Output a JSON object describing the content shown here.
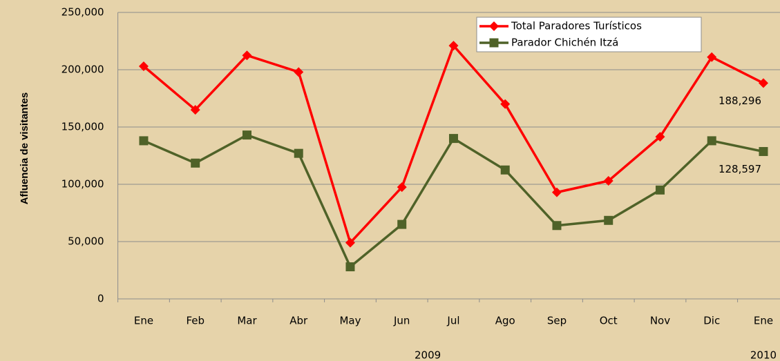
{
  "chart_data": {
    "type": "line",
    "y_axis_label": "Afluencia de visitantes",
    "categories": [
      "Ene",
      "Feb",
      "Mar",
      "Abr",
      "May",
      "Jun",
      "Jul",
      "Ago",
      "Sep",
      "Oct",
      "Nov",
      "Dic",
      "Ene"
    ],
    "years": [
      "2009",
      "2010"
    ],
    "series": [
      {
        "name": "Total Paradores Turísticos",
        "color": "#ff0000",
        "marker": "diamond",
        "values": [
          203000,
          165000,
          212500,
          198000,
          49000,
          97500,
          221000,
          170000,
          93000,
          103000,
          141500,
          211000,
          188296
        ],
        "value_labels": [
          null,
          null,
          null,
          null,
          null,
          null,
          null,
          null,
          null,
          null,
          null,
          null,
          "188,296"
        ]
      },
      {
        "name": "Parador Chichén Itzá",
        "color": "#4f6228",
        "marker": "square",
        "values": [
          138000,
          118500,
          143000,
          127000,
          28000,
          65000,
          140000,
          112500,
          64000,
          68500,
          95000,
          138000,
          128597
        ],
        "value_labels": [
          null,
          null,
          null,
          null,
          null,
          null,
          null,
          null,
          null,
          null,
          null,
          null,
          "128,597"
        ]
      }
    ],
    "ylim": [
      0,
      250000
    ],
    "yticks": [
      {
        "value": 0,
        "label": "0"
      },
      {
        "value": 50000,
        "label": "50,000"
      },
      {
        "value": 100000,
        "label": "100,000"
      },
      {
        "value": 150000,
        "label": "150,000"
      },
      {
        "value": 200000,
        "label": "200,000"
      },
      {
        "value": 250000,
        "label": "250,000"
      }
    ],
    "grid": true,
    "legend": "top-right"
  }
}
